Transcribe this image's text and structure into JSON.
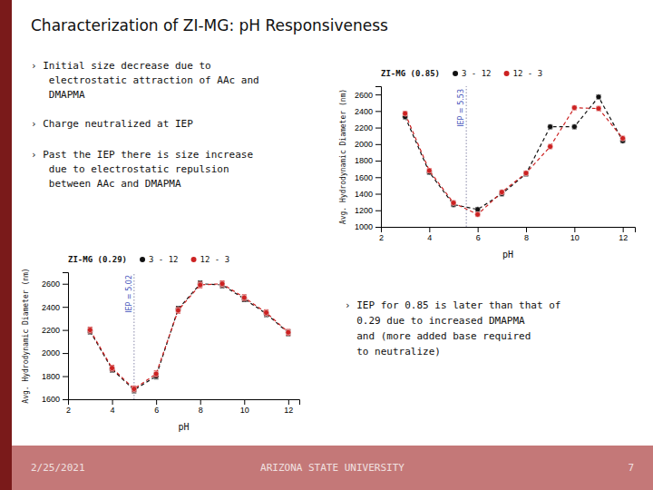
{
  "title": "Characterization of ZI-MG: pH Responsiveness",
  "annotations": [
    "› Initial size decrease due to\n   electrostatic attraction of AAc and\n   DMAPMA",
    "› Charge neutralized at IEP",
    "› Past the IEP there is size increase\n   due to electrostatic repulsion\n   between AAc and DMAPMA",
    "› IEP for 0.85 is later than that of\n  0.29 due to increased DMAPMA\n  and (more added base required\n  to neutralize)",
    "2/25/2021",
    "ARIZONA STATE UNIVERSITY",
    "7"
  ],
  "chart_data": [
    {
      "type": "line",
      "title": "ZI-MG (0.29)",
      "xlabel": "pH",
      "ylabel": "Avg. Hydrodynamic Diameter (nm)",
      "x": [
        3,
        4,
        5,
        6,
        7,
        8,
        9,
        10,
        11,
        12
      ],
      "series": [
        {
          "name": "3 - 12",
          "color": "#111111",
          "marker": "circle",
          "line_style": "dashed",
          "values": [
            2190,
            1860,
            1680,
            1800,
            2380,
            2600,
            2590,
            2470,
            2340,
            2175
          ],
          "errors": [
            25,
            25,
            25,
            25,
            25,
            25,
            25,
            25,
            25,
            25
          ]
        },
        {
          "name": "12 - 3",
          "color": "#cc2222",
          "marker": "circle",
          "line_style": "dashed",
          "values": [
            2200,
            1870,
            1690,
            1820,
            2370,
            2590,
            2600,
            2480,
            2350,
            2180
          ],
          "errors": [
            25,
            25,
            25,
            25,
            25,
            25,
            25,
            25,
            25,
            25
          ]
        }
      ],
      "xlim": [
        2,
        12.5
      ],
      "xticks": [
        2,
        4,
        6,
        8,
        10,
        12
      ],
      "ylim": [
        1600,
        2700
      ],
      "yticks": [
        1600,
        1800,
        2000,
        2200,
        2400,
        2600
      ],
      "legend": "top",
      "annotations": [
        {
          "x": 5.0,
          "text": "IEP = 5.02"
        }
      ]
    },
    {
      "type": "line",
      "title": "ZI-MG (0.85)",
      "xlabel": "pH",
      "ylabel": "Avg. Hydrodynamic Diameter (nm)",
      "x": [
        3,
        4,
        5,
        6,
        7,
        8,
        9,
        10,
        11,
        12
      ],
      "series": [
        {
          "name": "3 - 12",
          "color": "#111111",
          "marker": "circle",
          "line_style": "dashed",
          "values": [
            2330,
            1660,
            1270,
            1210,
            1400,
            1640,
            2210,
            2210,
            2570,
            2040
          ],
          "errors": [
            25,
            25,
            25,
            25,
            25,
            25,
            25,
            25,
            25,
            25
          ]
        },
        {
          "name": "12 - 3",
          "color": "#cc2222",
          "marker": "circle",
          "line_style": "dashed",
          "values": [
            2370,
            1680,
            1290,
            1150,
            1420,
            1650,
            1970,
            2440,
            2430,
            2070
          ],
          "errors": [
            25,
            25,
            25,
            25,
            25,
            25,
            25,
            25,
            25,
            25
          ]
        }
      ],
      "xlim": [
        2,
        12.5
      ],
      "xticks": [
        2,
        4,
        6,
        8,
        10,
        12
      ],
      "ylim": [
        1000,
        2700
      ],
      "yticks": [
        1000,
        1200,
        1400,
        1600,
        1800,
        2000,
        2200,
        2400,
        2600
      ],
      "legend": "top",
      "annotations": [
        {
          "x": 5.53,
          "text": "IEP = 5.53"
        }
      ]
    }
  ]
}
